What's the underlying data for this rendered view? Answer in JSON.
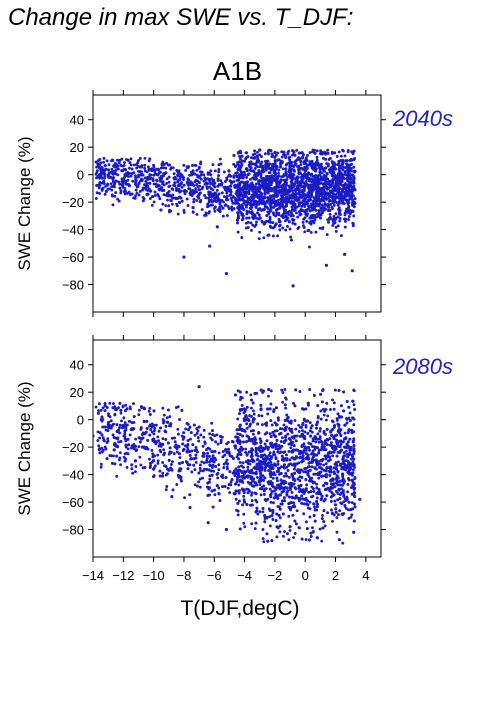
{
  "figure": {
    "title": "Change in max SWE vs. T_DJF:",
    "scenario": "A1B"
  },
  "colors": {
    "points": "#1c1cc4",
    "period_label": "#2323b4"
  },
  "chart_data": [
    {
      "type": "scatter",
      "panel_label": "2040s",
      "xlabel": "",
      "ylabel": "SWE Change (%)",
      "xlim": [
        -14,
        5
      ],
      "ylim": [
        -100,
        58
      ],
      "yticks": [
        40,
        20,
        0,
        -20,
        -40,
        -60,
        -80
      ],
      "xticks": [
        -14,
        -12,
        -10,
        -8,
        -6,
        -4,
        -2,
        0,
        2,
        4
      ],
      "xtick_labels_shown": false,
      "points": [
        [
          -13.4,
          5
        ],
        [
          -12.9,
          -2
        ],
        [
          -12.1,
          3
        ],
        [
          -11.6,
          -8
        ],
        [
          -10.8,
          0
        ],
        [
          -10.2,
          -12
        ],
        [
          -9.7,
          4
        ],
        [
          -9.1,
          -15
        ],
        [
          -8.6,
          -6
        ],
        [
          -8.0,
          -60
        ],
        [
          -7.4,
          -24
        ],
        [
          -6.9,
          8
        ],
        [
          -6.3,
          -52
        ],
        [
          -5.8,
          -38
        ],
        [
          -5.2,
          -72
        ],
        [
          -4.7,
          14
        ],
        [
          -4.1,
          -30
        ],
        [
          -3.5,
          -10
        ],
        [
          -3.0,
          18
        ],
        [
          -2.4,
          -44
        ],
        [
          -1.9,
          -5
        ],
        [
          -1.3,
          -26
        ],
        [
          -0.8,
          -81
        ],
        [
          -0.2,
          16
        ],
        [
          0.3,
          -35
        ],
        [
          0.9,
          -18
        ],
        [
          1.4,
          -66
        ],
        [
          2.0,
          4
        ],
        [
          2.6,
          -58
        ],
        [
          3.1,
          -70
        ]
      ]
    },
    {
      "type": "scatter",
      "panel_label": "2080s",
      "xlabel": "T(DJF,degC)",
      "ylabel": "SWE Change (%)",
      "xlim": [
        -14,
        5
      ],
      "ylim": [
        -100,
        58
      ],
      "yticks": [
        40,
        20,
        0,
        -20,
        -40,
        -60,
        -80
      ],
      "xticks": [
        -14,
        -12,
        -10,
        -8,
        -6,
        -4,
        -2,
        0,
        2,
        4
      ],
      "xtick_labels_shown": true,
      "points": [
        [
          -14.0,
          -12
        ],
        [
          -13.2,
          10
        ],
        [
          -12.6,
          -22
        ],
        [
          -11.9,
          -4
        ],
        [
          -11.2,
          -30
        ],
        [
          -10.6,
          8
        ],
        [
          -10.0,
          -36
        ],
        [
          -9.4,
          -18
        ],
        [
          -8.8,
          -56
        ],
        [
          -8.2,
          -42
        ],
        [
          -7.6,
          -64
        ],
        [
          -7.0,
          24
        ],
        [
          -6.4,
          -75
        ],
        [
          -5.8,
          -48
        ],
        [
          -5.2,
          -80
        ],
        [
          -4.6,
          18
        ],
        [
          -4.0,
          -60
        ],
        [
          -3.4,
          -30
        ],
        [
          -2.8,
          20
        ],
        [
          -2.2,
          -70
        ],
        [
          -1.6,
          -10
        ],
        [
          -1.0,
          -78
        ],
        [
          -0.4,
          -50
        ],
        [
          0.2,
          12
        ],
        [
          0.8,
          -86
        ],
        [
          1.4,
          -40
        ],
        [
          2.0,
          -62
        ],
        [
          2.6,
          -20
        ],
        [
          3.2,
          -82
        ],
        [
          3.6,
          -58
        ]
      ]
    }
  ]
}
